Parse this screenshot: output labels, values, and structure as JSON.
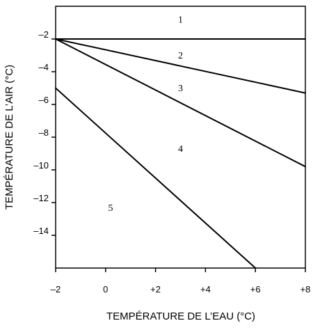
{
  "chart_data": {
    "type": "line",
    "title": "",
    "xlabel": "TEMPÉRATURE DE L’EAU (°C)",
    "ylabel": "TEMPÉRATURE DE L’AIR (°C)",
    "xlim": [
      -2,
      8
    ],
    "ylim": [
      -16,
      0
    ],
    "grid": false,
    "x_ticks": [
      -2,
      0,
      2,
      4,
      6,
      8
    ],
    "x_tick_labels": [
      "–2",
      "0",
      "+2",
      "+4",
      "+6",
      "+8"
    ],
    "y_ticks": [
      -2,
      -4,
      -6,
      -8,
      -10,
      -12,
      -14
    ],
    "y_tick_labels": [
      "–2",
      "–4",
      "–6",
      "–8",
      "–10",
      "–12",
      "–14"
    ],
    "lines": [
      {
        "x": [
          -2,
          8
        ],
        "y": [
          -2.0,
          -2.0
        ]
      },
      {
        "x": [
          -2,
          8
        ],
        "y": [
          -2.0,
          -5.3
        ]
      },
      {
        "x": [
          -2,
          8
        ],
        "y": [
          -2.0,
          -9.8
        ]
      },
      {
        "x": [
          -2,
          6
        ],
        "y": [
          -5.0,
          -16.0
        ]
      }
    ],
    "region_labels": [
      {
        "text": "1",
        "x": 3.0,
        "y": -1.0
      },
      {
        "text": "2",
        "x": 3.0,
        "y": -3.2
      },
      {
        "text": "3",
        "x": 3.0,
        "y": -5.2
      },
      {
        "text": "4",
        "x": 3.0,
        "y": -8.9
      },
      {
        "text": "5",
        "x": 0.2,
        "y": -12.5
      }
    ]
  }
}
